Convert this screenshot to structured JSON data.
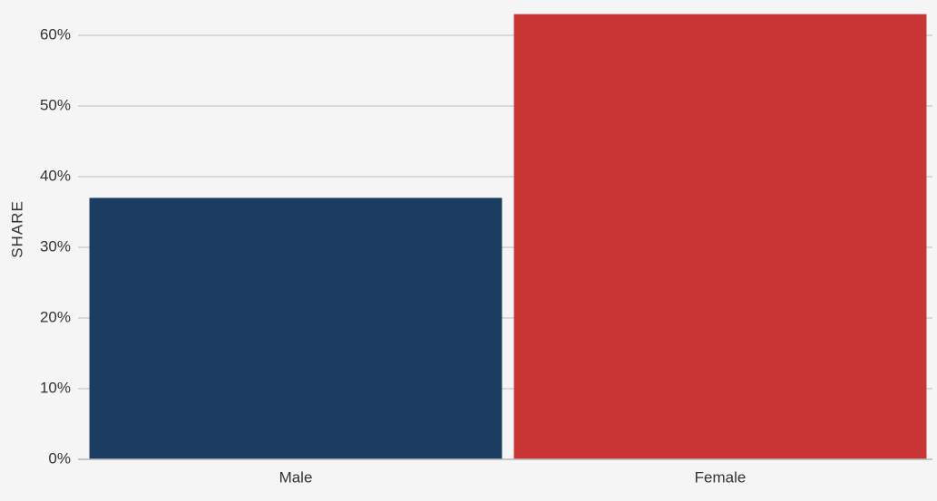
{
  "chart_data": {
    "type": "bar",
    "y_label": "SHARE",
    "categories": [
      "Male",
      "Female"
    ],
    "values": [
      37,
      63
    ],
    "colors": [
      "#1c3d61",
      "#c93434"
    ],
    "ylim": [
      0,
      63
    ],
    "yticks": [
      {
        "value": 0,
        "label": "0%"
      },
      {
        "value": 10,
        "label": "10%"
      },
      {
        "value": 20,
        "label": "20%"
      },
      {
        "value": 30,
        "label": "30%"
      },
      {
        "value": 40,
        "label": "40%"
      },
      {
        "value": 50,
        "label": "50%"
      },
      {
        "value": 60,
        "label": "60%"
      }
    ],
    "grid": true
  }
}
